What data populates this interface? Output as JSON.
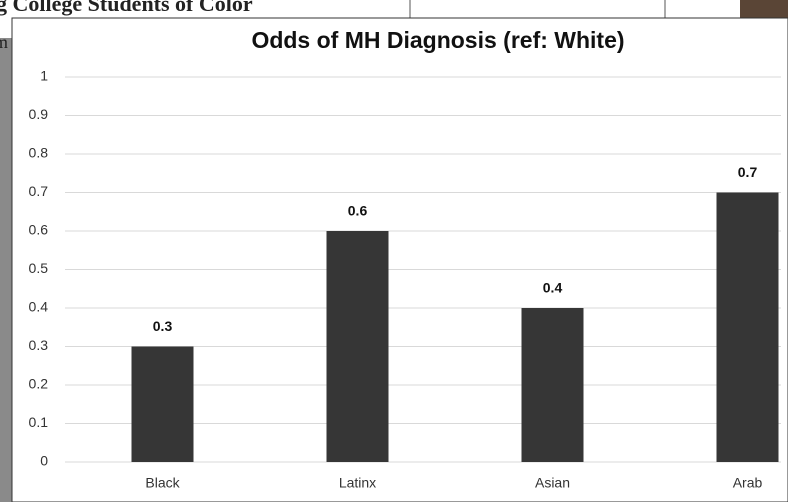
{
  "background_title": "g College Students of Color",
  "background_side": "m",
  "chart_data": {
    "type": "bar",
    "title": "Odds of MH Diagnosis (ref: White)",
    "categories": [
      "Black",
      "Latinx",
      "Asian",
      "Arab"
    ],
    "values": [
      0.3,
      0.6,
      0.4,
      0.7
    ],
    "color": "#363636",
    "ylim": [
      0,
      1
    ],
    "yticks": [
      0,
      0.1,
      0.2,
      0.3,
      0.4,
      0.5,
      0.6,
      0.7,
      0.8,
      0.9,
      1
    ],
    "grid": true
  }
}
